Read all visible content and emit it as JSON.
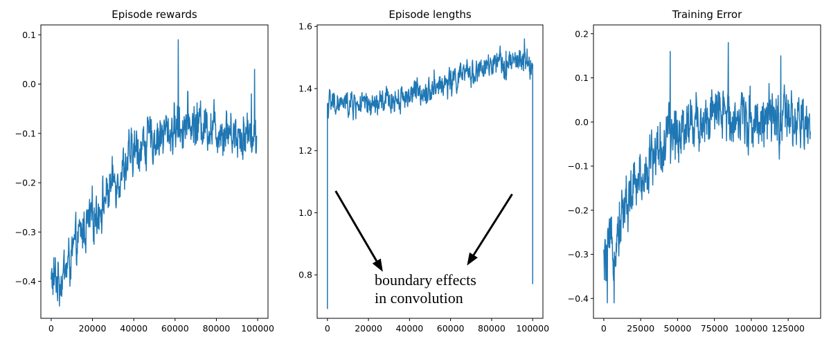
{
  "chart_data": [
    {
      "type": "line",
      "title": "Episode rewards",
      "xlim": [
        -5000,
        105000
      ],
      "ylim": [
        -0.475,
        0.12
      ],
      "xticks": [
        0,
        20000,
        40000,
        60000,
        80000,
        100000
      ],
      "xtick_labels": [
        "0",
        "20000",
        "40000",
        "60000",
        "80000",
        "100000"
      ],
      "yticks": [
        -0.4,
        -0.3,
        -0.2,
        -0.1,
        0.0,
        0.1
      ],
      "ytick_labels": [
        "−0.4",
        "−0.3",
        "−0.2",
        "−0.1",
        "0.0",
        "0.1"
      ],
      "series": [
        {
          "name": "episode rewards",
          "x_range": [
            0,
            99500
          ],
          "trend_x": [
            0,
            5000,
            10000,
            15000,
            20000,
            25000,
            30000,
            35000,
            40000,
            45000,
            50000,
            55000,
            60000,
            65000,
            70000,
            75000,
            80000,
            85000,
            90000,
            95000,
            99500
          ],
          "trend_y": [
            -0.4,
            -0.39,
            -0.35,
            -0.3,
            -0.27,
            -0.24,
            -0.2,
            -0.17,
            -0.14,
            -0.12,
            -0.11,
            -0.1,
            -0.09,
            -0.08,
            -0.08,
            -0.08,
            -0.09,
            -0.09,
            -0.1,
            -0.1,
            -0.11
          ],
          "noise": 0.04,
          "spikes": [
            [
              61500,
              0.09
            ],
            [
              98500,
              0.03
            ],
            [
              4000,
              -0.45
            ],
            [
              97000,
              -0.02
            ]
          ]
        }
      ]
    },
    {
      "type": "line",
      "title": "Episode lengths",
      "xlim": [
        -5000,
        105000
      ],
      "ylim": [
        0.66,
        1.605
      ],
      "xticks": [
        0,
        20000,
        40000,
        60000,
        80000,
        100000
      ],
      "xtick_labels": [
        "0",
        "20000",
        "40000",
        "60000",
        "80000",
        "100000"
      ],
      "yticks": [
        0.8,
        1.0,
        1.2,
        1.4,
        1.6
      ],
      "ytick_labels": [
        "0.8",
        "1.0",
        "1.2",
        "1.4",
        "1.6"
      ],
      "series": [
        {
          "name": "episode lengths",
          "x_range": [
            0,
            100000
          ],
          "start_value": 0.69,
          "end_value": 0.77,
          "trend_x": [
            0,
            5000,
            10000,
            15000,
            20000,
            25000,
            30000,
            35000,
            40000,
            45000,
            50000,
            55000,
            60000,
            65000,
            70000,
            75000,
            80000,
            85000,
            90000,
            95000,
            100000
          ],
          "trend_y": [
            1.35,
            1.35,
            1.35,
            1.35,
            1.34,
            1.35,
            1.36,
            1.37,
            1.38,
            1.39,
            1.4,
            1.41,
            1.42,
            1.44,
            1.45,
            1.46,
            1.47,
            1.48,
            1.48,
            1.49,
            1.47
          ],
          "noise": 0.035,
          "spikes": [
            [
              96000,
              1.56
            ],
            [
              52000,
              1.46
            ],
            [
              87000,
              1.52
            ]
          ]
        }
      ],
      "annotation": {
        "text_line1": "boundary effects",
        "text_line2": "in convolution",
        "arrow_from_1": [
          4000,
          1.07
        ],
        "arrow_to_1": [
          27000,
          0.81
        ],
        "arrow_from_2": [
          90000,
          1.06
        ],
        "arrow_to_2": [
          68000,
          0.83
        ]
      }
    },
    {
      "type": "line",
      "title": "Training Error",
      "xlim": [
        -7000,
        147000
      ],
      "ylim": [
        -0.445,
        0.22
      ],
      "xticks": [
        0,
        25000,
        50000,
        75000,
        100000,
        125000
      ],
      "xtick_labels": [
        "0",
        "25000",
        "50000",
        "75000",
        "100000",
        "125000"
      ],
      "yticks": [
        -0.4,
        -0.3,
        -0.2,
        -0.1,
        0.0,
        0.1,
        0.2
      ],
      "ytick_labels": [
        "−0.4",
        "−0.3",
        "−0.2",
        "−0.1",
        "0.0",
        "0.1",
        "0.2"
      ],
      "series": [
        {
          "name": "training error",
          "x_range": [
            0,
            140000
          ],
          "trend_x": [
            0,
            7000,
            14000,
            21000,
            28000,
            35000,
            42000,
            49000,
            56000,
            63000,
            70000,
            77000,
            84000,
            91000,
            98000,
            105000,
            112000,
            119000,
            126000,
            133000,
            140000
          ],
          "trend_y": [
            -0.33,
            -0.27,
            -0.19,
            -0.15,
            -0.11,
            -0.07,
            -0.05,
            -0.02,
            0.0,
            0.0,
            0.01,
            0.01,
            0.02,
            0.01,
            0.01,
            0.01,
            0.0,
            0.0,
            0.0,
            -0.01,
            -0.02
          ],
          "noise": 0.055,
          "spikes": [
            [
              84500,
              0.18
            ],
            [
              2500,
              -0.41
            ],
            [
              7000,
              -0.41
            ],
            [
              45000,
              0.16
            ],
            [
              120000,
              0.15
            ]
          ]
        }
      ]
    }
  ]
}
